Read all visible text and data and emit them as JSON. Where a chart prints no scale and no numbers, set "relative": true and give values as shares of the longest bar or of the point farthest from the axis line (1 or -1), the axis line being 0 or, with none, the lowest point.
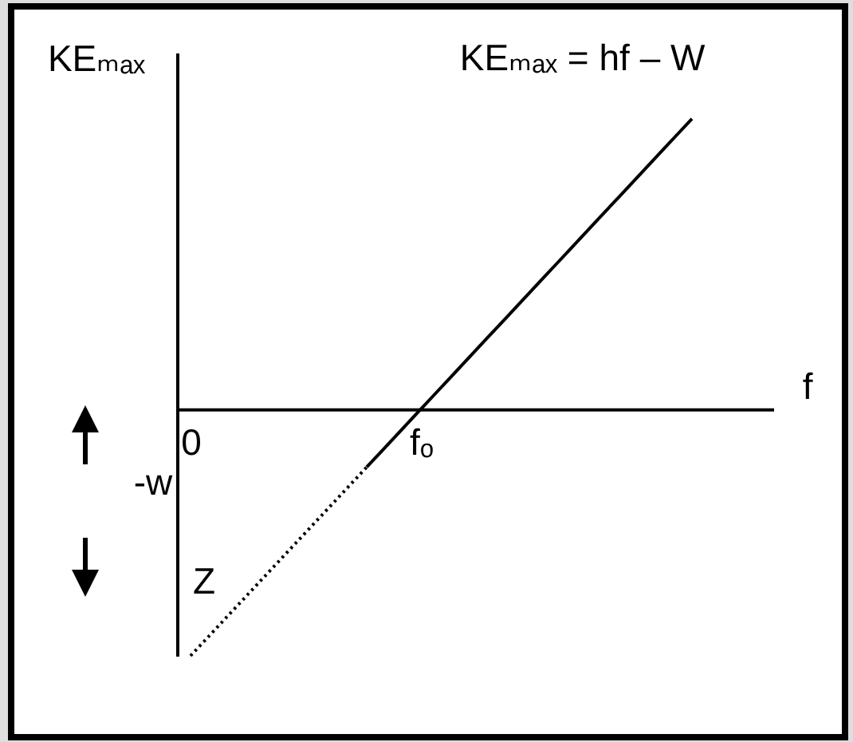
{
  "chart_data": {
    "type": "line",
    "relative": true,
    "xlabel": "f",
    "ylabel": "KEₘₐₓ",
    "categories": [
      "0",
      null,
      null,
      null,
      null,
      null,
      null,
      null,
      null,
      null,
      null,
      null,
      null,
      null,
      null,
      null,
      null,
      "fₒ",
      null,
      null,
      null,
      null,
      null,
      null,
      null,
      null,
      null,
      null,
      null,
      null,
      null,
      null,
      null,
      null,
      null,
      null,
      null,
      null,
      null,
      null,
      null,
      null,
      null
    ],
    "series": [
      {
        "color": "#000000",
        "line_style": "solid",
        "values": [
          null,
          null,
          null,
          null,
          null,
          null,
          null,
          null,
          null,
          null,
          null,
          null,
          null,
          -0.2,
          -0.15,
          -0.1,
          -0.05,
          0,
          0.05,
          0.1,
          0.15,
          0.2,
          0.25,
          0.3,
          0.35,
          0.4,
          0.45,
          0.5,
          0.55,
          0.6,
          0.65,
          0.7,
          0.75,
          0.8,
          0.85,
          0.9,
          0.95,
          1,
          null,
          null,
          null,
          null,
          null
        ]
      },
      {
        "color": "#000000",
        "line_style": "dotted",
        "values": [
          -0.85,
          -0.8,
          -0.75,
          -0.7,
          -0.65,
          -0.6,
          -0.55,
          -0.5,
          -0.45,
          -0.4,
          -0.35,
          -0.3,
          -0.25,
          -0.2,
          null,
          null,
          null,
          null,
          null,
          null,
          null,
          null,
          null,
          null,
          null,
          null,
          null,
          null,
          null,
          null,
          null,
          null,
          null,
          null,
          null,
          null,
          null,
          null,
          null,
          null,
          null,
          null,
          null
        ]
      }
    ],
    "annotations": [
      "KEₘₐₓ = hf – W",
      "-w",
      "Z"
    ]
  }
}
